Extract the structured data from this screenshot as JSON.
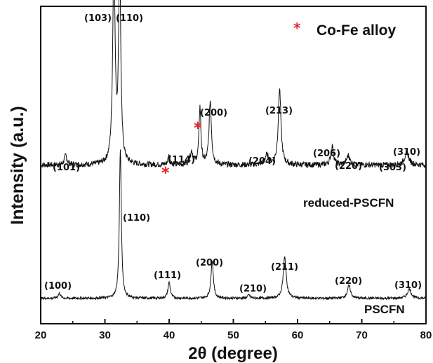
{
  "chart_data": {
    "type": "line",
    "xlabel": "2θ (degree)",
    "ylabel": "Intensity (a.u.)",
    "xlim": [
      20,
      80
    ],
    "xticks": [
      20,
      30,
      40,
      50,
      60,
      70,
      80
    ],
    "legend": {
      "marker": "*",
      "label": "Co-Fe alloy",
      "marker_color": "#e8202a",
      "position": "top-right"
    },
    "series": [
      {
        "name": "reduced-PSCFN",
        "baseline": 0.5,
        "noise": 0.009,
        "peaks": [
          {
            "x": 23.9,
            "height": 0.03,
            "width": 0.25
          },
          {
            "x": 31.4,
            "height": 0.64,
            "width": 0.22
          },
          {
            "x": 32.3,
            "height": 0.62,
            "width": 0.2
          },
          {
            "x": 40.0,
            "height": 0.03,
            "width": 0.2
          },
          {
            "x": 43.5,
            "height": 0.04,
            "width": 0.3
          },
          {
            "x": 44.8,
            "height": 0.18,
            "width": 0.18
          },
          {
            "x": 46.4,
            "height": 0.2,
            "width": 0.22
          },
          {
            "x": 55.2,
            "height": 0.03,
            "width": 0.35
          },
          {
            "x": 57.2,
            "height": 0.24,
            "width": 0.25
          },
          {
            "x": 65.4,
            "height": 0.06,
            "width": 0.25
          },
          {
            "x": 67.9,
            "height": 0.03,
            "width": 0.3
          },
          {
            "x": 77.0,
            "height": 0.04,
            "width": 0.4
          }
        ]
      },
      {
        "name": "PSCFN",
        "baseline": 0.08,
        "noise": 0.004,
        "peaks": [
          {
            "x": 22.9,
            "height": 0.015,
            "width": 0.25
          },
          {
            "x": 32.4,
            "height": 0.47,
            "width": 0.18
          },
          {
            "x": 40.0,
            "height": 0.05,
            "width": 0.22
          },
          {
            "x": 46.7,
            "height": 0.12,
            "width": 0.22
          },
          {
            "x": 52.4,
            "height": 0.01,
            "width": 0.25
          },
          {
            "x": 58.0,
            "height": 0.13,
            "width": 0.28
          },
          {
            "x": 68.0,
            "height": 0.04,
            "width": 0.3
          },
          {
            "x": 77.4,
            "height": 0.03,
            "width": 0.35
          }
        ]
      }
    ],
    "annotations": {
      "reduced": [
        "(101)",
        "(103)",
        "(110)",
        "(114)",
        "(200)",
        "(204)",
        "(213)",
        "(206)",
        "(220)",
        "(303)",
        "(310)"
      ],
      "reduced_markers": [
        "*",
        "*"
      ],
      "pristine": [
        "(100)",
        "(110)",
        "(111)",
        "(200)",
        "(210)",
        "(211)",
        "(220)",
        "(310)"
      ]
    }
  }
}
